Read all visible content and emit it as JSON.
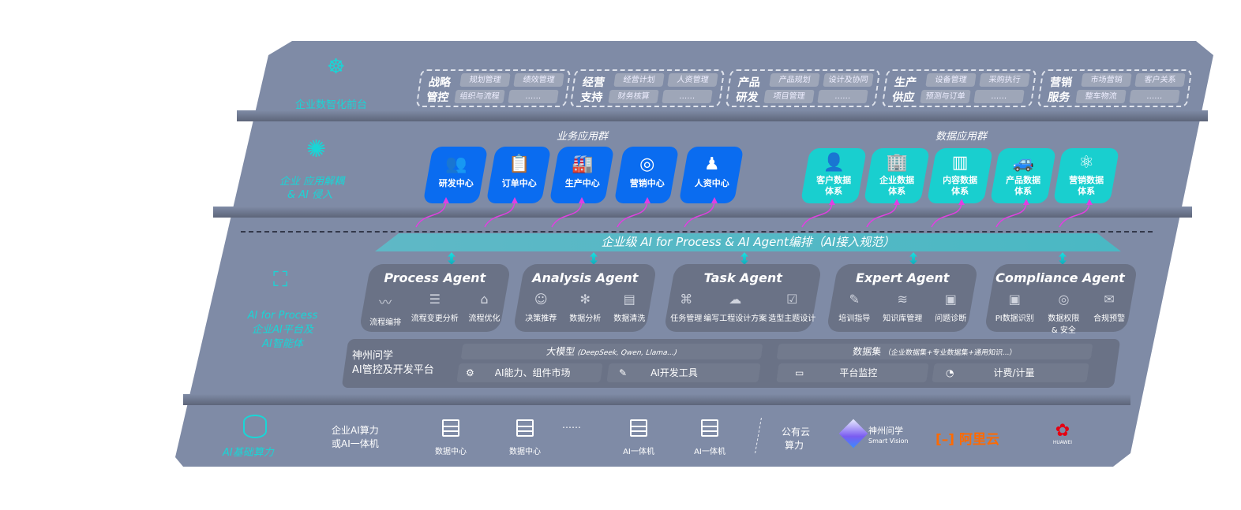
{
  "layers": {
    "front": {
      "label": "企业数智化前台",
      "icon": "brain-icon",
      "groups": [
        {
          "title": "战略管控",
          "items": [
            "规划管理",
            "绩效管理",
            "组织与流程",
            "……"
          ]
        },
        {
          "title": "经营支持",
          "items": [
            "经营计划",
            "人资管理",
            "财务核算",
            "……"
          ]
        },
        {
          "title": "产品研发",
          "items": [
            "产品规划",
            "设计及协同",
            "项目管理",
            "……"
          ]
        },
        {
          "title": "生产供应",
          "items": [
            "设备管理",
            "采购执行",
            "预测与订单",
            "……"
          ]
        },
        {
          "title": "营销服务",
          "items": [
            "市场营销",
            "客户关系",
            "整车物流",
            "……"
          ]
        }
      ]
    },
    "apps": {
      "label_line1": "企业 应用解耦",
      "label_line2": "& AI 侵入",
      "icon": "molecule-icon",
      "business_title": "业务应用群",
      "business": [
        {
          "label": "研发中心",
          "icon": "team-icon"
        },
        {
          "label": "订单中心",
          "icon": "clipboard-icon"
        },
        {
          "label": "生产中心",
          "icon": "factory-icon"
        },
        {
          "label": "营销中心",
          "icon": "target-icon"
        },
        {
          "label": "人资中心",
          "icon": "people-icon"
        }
      ],
      "data_title": "数据应用群",
      "data": [
        {
          "l1": "客户数据",
          "l2": "体系",
          "icon": "user-icon"
        },
        {
          "l1": "企业数据",
          "l2": "体系",
          "icon": "building-icon"
        },
        {
          "l1": "内容数据",
          "l2": "体系",
          "icon": "books-icon"
        },
        {
          "l1": "产品数据",
          "l2": "体系",
          "icon": "car-icon"
        },
        {
          "l1": "营销数据",
          "l2": "体系",
          "icon": "atom-icon"
        }
      ]
    },
    "ai": {
      "banner": "企业级 AI for Process & AI Agent编排（AI接入规范）",
      "label_line1": "AI for Process",
      "label_line2": "企业AI平台及",
      "label_line3": "AI智能体",
      "icon": "face-scan-icon",
      "agents": [
        {
          "name": "Process Agent",
          "items": [
            "流程编排",
            "流程变更分析",
            "流程优化"
          ]
        },
        {
          "name": "Analysis Agent",
          "items": [
            "决策推荐",
            "数据分析",
            "数据清洗"
          ]
        },
        {
          "name": "Task Agent",
          "items": [
            "任务管理",
            "编写工程设计方案",
            "造型主题设计"
          ]
        },
        {
          "name": "Expert Agent",
          "items": [
            "培训指导",
            "知识库管理",
            "问题诊断"
          ]
        },
        {
          "name": "Compliance Agent",
          "items": [
            "PI数据识别",
            "数据权限 & 安全",
            "合规预警"
          ]
        }
      ],
      "platform": {
        "title_line1": "神州问学",
        "title_line2": "AI管控及开发平台",
        "model": "大模型",
        "model_note": "(DeepSeek, Qwen, Llama...)",
        "dataset": "数据集",
        "dataset_note": "（企业数据集+专业数据集+通用知识...）",
        "tools": [
          "AI能力、组件市场",
          "AI开发工具",
          "平台监控",
          "计费/计量"
        ]
      }
    },
    "compute": {
      "label": "AI基础算力",
      "icon": "database-icon",
      "private_line1": "企业AI算力",
      "private_line2": "或AI一体机",
      "servers": [
        "数据中心",
        "数据中心",
        "AI一体机",
        "AI一体机"
      ],
      "ellipsis": "……",
      "public_line1": "公有云",
      "public_line2": "算力",
      "vendors": {
        "smart_vision_cn": "神州问学",
        "smart_vision_en": "Smart Vision",
        "aliyun": "阿里云",
        "huawei": "HUAWEI"
      }
    }
  },
  "colors": {
    "panel": "#7f8ba6",
    "cyan": "#19d6d6",
    "blue": "#0a6cf0",
    "teal": "#19cfcf",
    "magenta": "#e040e0",
    "aliyun": "#ff6a00",
    "huawei": "#e60012"
  }
}
